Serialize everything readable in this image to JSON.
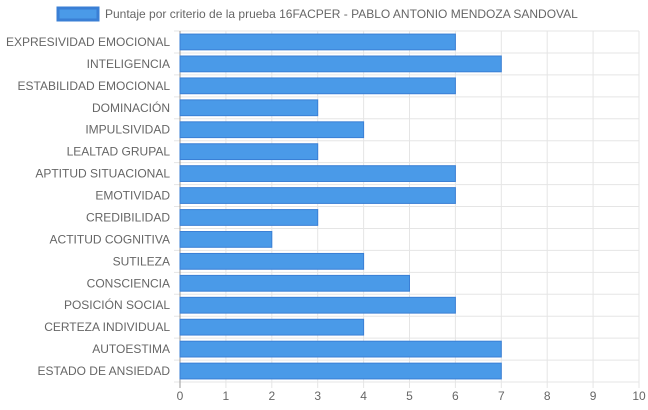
{
  "chart_data": {
    "type": "bar",
    "orientation": "horizontal",
    "categories": [
      "EXPRESIVIDAD EMOCIONAL",
      "INTELIGENCIA",
      "ESTABILIDAD EMOCIONAL",
      "DOMINACIÓN",
      "IMPULSIVIDAD",
      "LEALTAD GRUPAL",
      "APTITUD SITUACIONAL",
      "EMOTIVIDAD",
      "CREDIBILIDAD",
      "ACTITUD COGNITIVA",
      "SUTILEZA",
      "CONSCIENCIA",
      "POSICIÓN SOCIAL",
      "CERTEZA INDIVIDUAL",
      "AUTOESTIMA",
      "ESTADO DE ANSIEDAD"
    ],
    "series": [
      {
        "name": "Puntaje por criterio de la prueba 16FACPER - PABLO ANTONIO MENDOZA SANDOVAL",
        "values": [
          6,
          7,
          6,
          3,
          4,
          3,
          6,
          6,
          3,
          2,
          4,
          5,
          6,
          4,
          7,
          7
        ],
        "color": "#4a9ae8",
        "border_color": "#3a7fd5"
      }
    ],
    "xlim": [
      0,
      10
    ],
    "x_ticks": [
      "0",
      "1",
      "2",
      "3",
      "4",
      "5",
      "6",
      "7",
      "8",
      "9",
      "10"
    ],
    "grid": true,
    "legend": "top-center"
  }
}
